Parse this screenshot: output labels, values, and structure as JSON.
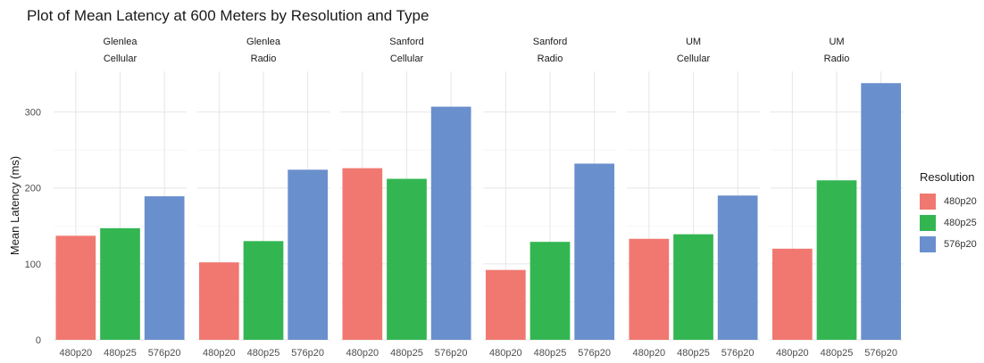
{
  "chart_data": {
    "type": "bar",
    "title": "Plot of Mean Latency at 600 Meters by Resolution and Type",
    "xlabel": "",
    "ylabel": "Mean Latency (ms)",
    "ylim": [
      0,
      350
    ],
    "yticks": [
      0,
      100,
      200,
      300
    ],
    "grid": true,
    "legend": {
      "title": "Resolution",
      "placement": "right"
    },
    "categories": [
      "480p20",
      "480p25",
      "576p20"
    ],
    "colors": {
      "480p20": "#F07870",
      "480p25": "#33B652",
      "576p20": "#6A8FCD"
    },
    "panels": [
      {
        "location": "Glenlea",
        "type": "Cellular",
        "values": [
          137,
          147,
          189
        ]
      },
      {
        "location": "Glenlea",
        "type": "Radio",
        "values": [
          102,
          130,
          224
        ]
      },
      {
        "location": "Sanford",
        "type": "Cellular",
        "values": [
          226,
          212,
          307
        ]
      },
      {
        "location": "Sanford",
        "type": "Radio",
        "values": [
          92,
          129,
          232
        ]
      },
      {
        "location": "UM",
        "type": "Cellular",
        "values": [
          133,
          139,
          190
        ]
      },
      {
        "location": "UM",
        "type": "Radio",
        "values": [
          120,
          210,
          338
        ]
      }
    ]
  }
}
